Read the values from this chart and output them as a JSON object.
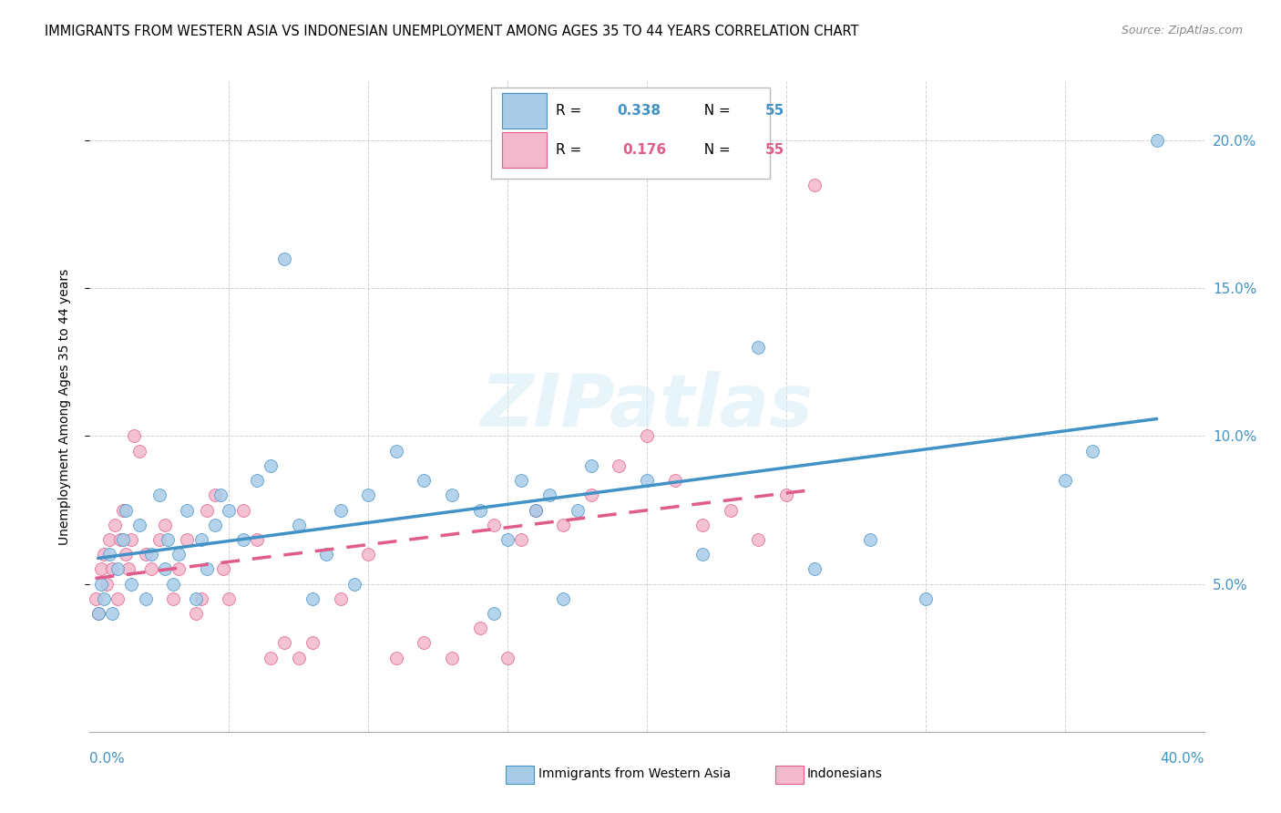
{
  "title": "IMMIGRANTS FROM WESTERN ASIA VS INDONESIAN UNEMPLOYMENT AMONG AGES 35 TO 44 YEARS CORRELATION CHART",
  "source": "Source: ZipAtlas.com",
  "ylabel": "Unemployment Among Ages 35 to 44 years",
  "xlim": [
    0.0,
    0.4
  ],
  "ylim": [
    0.0,
    0.22
  ],
  "yticks": [
    0.05,
    0.1,
    0.15,
    0.2
  ],
  "ytick_labels": [
    "5.0%",
    "10.0%",
    "15.0%",
    "20.0%"
  ],
  "xticks": [
    0.0,
    0.05,
    0.1,
    0.15,
    0.2,
    0.25,
    0.3,
    0.35,
    0.4
  ],
  "blue_color": "#a8cce8",
  "pink_color": "#f4b8cc",
  "blue_line_color": "#4292c6",
  "pink_line_color": "#e05c8a",
  "watermark": "ZIPatlas",
  "blue_scatter_x": [
    0.003,
    0.004,
    0.005,
    0.007,
    0.008,
    0.01,
    0.012,
    0.013,
    0.015,
    0.018,
    0.02,
    0.022,
    0.025,
    0.027,
    0.028,
    0.03,
    0.032,
    0.035,
    0.038,
    0.04,
    0.042,
    0.045,
    0.047,
    0.05,
    0.055,
    0.06,
    0.065,
    0.07,
    0.075,
    0.08,
    0.085,
    0.09,
    0.095,
    0.1,
    0.11,
    0.12,
    0.13,
    0.14,
    0.145,
    0.15,
    0.155,
    0.16,
    0.165,
    0.17,
    0.175,
    0.18,
    0.2,
    0.22,
    0.24,
    0.26,
    0.28,
    0.3,
    0.35,
    0.36,
    0.383
  ],
  "blue_scatter_y": [
    0.04,
    0.05,
    0.045,
    0.06,
    0.04,
    0.055,
    0.065,
    0.075,
    0.05,
    0.07,
    0.045,
    0.06,
    0.08,
    0.055,
    0.065,
    0.05,
    0.06,
    0.075,
    0.045,
    0.065,
    0.055,
    0.07,
    0.08,
    0.075,
    0.065,
    0.085,
    0.09,
    0.16,
    0.07,
    0.045,
    0.06,
    0.075,
    0.05,
    0.08,
    0.095,
    0.085,
    0.08,
    0.075,
    0.04,
    0.065,
    0.085,
    0.075,
    0.08,
    0.045,
    0.075,
    0.09,
    0.085,
    0.06,
    0.13,
    0.055,
    0.065,
    0.045,
    0.085,
    0.095,
    0.2
  ],
  "pink_scatter_x": [
    0.002,
    0.003,
    0.004,
    0.005,
    0.006,
    0.007,
    0.008,
    0.009,
    0.01,
    0.011,
    0.012,
    0.013,
    0.014,
    0.015,
    0.016,
    0.018,
    0.02,
    0.022,
    0.025,
    0.027,
    0.03,
    0.032,
    0.035,
    0.038,
    0.04,
    0.042,
    0.045,
    0.048,
    0.05,
    0.055,
    0.06,
    0.065,
    0.07,
    0.075,
    0.08,
    0.09,
    0.1,
    0.11,
    0.12,
    0.13,
    0.14,
    0.145,
    0.15,
    0.155,
    0.16,
    0.17,
    0.18,
    0.19,
    0.2,
    0.21,
    0.22,
    0.23,
    0.24,
    0.25,
    0.26
  ],
  "pink_scatter_y": [
    0.045,
    0.04,
    0.055,
    0.06,
    0.05,
    0.065,
    0.055,
    0.07,
    0.045,
    0.065,
    0.075,
    0.06,
    0.055,
    0.065,
    0.1,
    0.095,
    0.06,
    0.055,
    0.065,
    0.07,
    0.045,
    0.055,
    0.065,
    0.04,
    0.045,
    0.075,
    0.08,
    0.055,
    0.045,
    0.075,
    0.065,
    0.025,
    0.03,
    0.025,
    0.03,
    0.045,
    0.06,
    0.025,
    0.03,
    0.025,
    0.035,
    0.07,
    0.025,
    0.065,
    0.075,
    0.07,
    0.08,
    0.09,
    0.1,
    0.085,
    0.07,
    0.075,
    0.065,
    0.08,
    0.185
  ]
}
